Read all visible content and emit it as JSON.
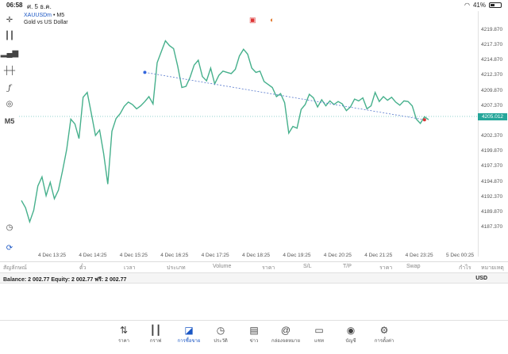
{
  "status_bar": {
    "time": "06:58",
    "date": "ศ. 5 ธ.ค.",
    "battery": "41%",
    "battery_level": 0.41
  },
  "toolbar": {
    "icons": [
      "crosshair-icon",
      "candles-icon",
      "bars-icon",
      "ohlc-icon",
      "function-icon",
      "objects-icon"
    ],
    "timeframe": "M5"
  },
  "symbol": {
    "name": "XAUUSDm",
    "timeframe": "M5",
    "description": "Gold vs US Dollar"
  },
  "current_price": "4205.012",
  "colors": {
    "line": "#46b08c",
    "current_price_bg": "#26a69a",
    "trendline": "#5577cc",
    "accent": "#1a56c4"
  },
  "chart_data": {
    "type": "line",
    "x_tick_labels": [
      "4 Dec 13:25",
      "4 Dec 14:25",
      "4 Dec 15:25",
      "4 Dec 16:25",
      "4 Dec 17:25",
      "4 Dec 18:25",
      "4 Dec 19:25",
      "4 Dec 20:25",
      "4 Dec 21:25",
      "4 Dec 23:25",
      "5 Dec 00:25"
    ],
    "y_tick_labels": [
      "4219.870",
      "4217.370",
      "4214.870",
      "4212.370",
      "4209.870",
      "4207.370",
      "4202.370",
      "4199.870",
      "4197.370",
      "4194.870",
      "4192.370",
      "4189.870",
      "4187.370"
    ],
    "ylim": [
      4185.7,
      4220.9
    ],
    "current_value": 4205.012,
    "grid": false,
    "values": [
      4191.8,
      4190.6,
      4188.3,
      4190.2,
      4194.2,
      4195.7,
      4192.6,
      4194.8,
      4192.1,
      4193.5,
      4196.7,
      4200.2,
      4205.2,
      4204.4,
      4202.0,
      4208.8,
      4209.6,
      4206.1,
      4202.5,
      4203.4,
      4199.5,
      4194.5,
      4203.2,
      4205.3,
      4206.1,
      4207.3,
      4208.0,
      4207.6,
      4206.9,
      4207.4,
      4208.1,
      4208.9,
      4207.7,
      4214.5,
      4216.3,
      4218.1,
      4217.3,
      4216.8,
      4213.9,
      4210.4,
      4210.6,
      4212.1,
      4214.1,
      4214.9,
      4212.2,
      4211.5,
      4213.6,
      4211.0,
      4212.4,
      4213.1,
      4212.9,
      4212.7,
      4213.4,
      4215.6,
      4216.7,
      4215.9,
      4213.6,
      4212.9,
      4213.1,
      4211.4,
      4210.9,
      4210.4,
      4208.9,
      4209.4,
      4207.9,
      4202.9,
      4204.0,
      4203.7,
      4206.8,
      4207.6,
      4209.3,
      4208.7,
      4207.2,
      4208.4,
      4207.4,
      4208.2,
      4207.6,
      4208.1,
      4207.7,
      4206.6,
      4207.2,
      4208.5,
      4208.2,
      4208.7,
      4206.9,
      4207.4,
      4209.6,
      4208.1,
      4208.9,
      4208.3,
      4208.8,
      4208.0,
      4207.5,
      4208.2,
      4208.1,
      4207.4,
      4205.2,
      4204.5,
      4205.6,
      4205.1
    ],
    "trendline": {
      "from": [
        30,
        4212.9
      ],
      "to": [
        98,
        4205.1
      ]
    }
  },
  "table": {
    "headers": [
      "สัญลักษณ์",
      "ตั๋ว",
      "เวลา",
      "ประเภท",
      "Volume",
      "ราคา",
      "S/L",
      "T/P",
      "ราคา",
      "Swap",
      "กำไร",
      "หมายเหตุ"
    ]
  },
  "balance": {
    "text": "Balance: 2 002.77 Equity: 2 002.77 ฟรี: 2 002.77",
    "currency": "USD"
  },
  "tabs": [
    {
      "label": "ราคา",
      "icon": "arrows-updown-icon"
    },
    {
      "label": "กราฟ",
      "icon": "candles-icon"
    },
    {
      "label": "การซื้อขาย",
      "icon": "chart-line-icon",
      "active": true
    },
    {
      "label": "ประวัติ",
      "icon": "clock-icon"
    },
    {
      "label": "ข่าว",
      "icon": "book-icon"
    },
    {
      "label": "กล่องจดหมาย",
      "icon": "at-icon"
    },
    {
      "label": "แชท",
      "icon": "chat-icon"
    },
    {
      "label": "บัญชี",
      "icon": "account-icon"
    },
    {
      "label": "การตั้งค่า",
      "icon": "gear-icon"
    }
  ]
}
